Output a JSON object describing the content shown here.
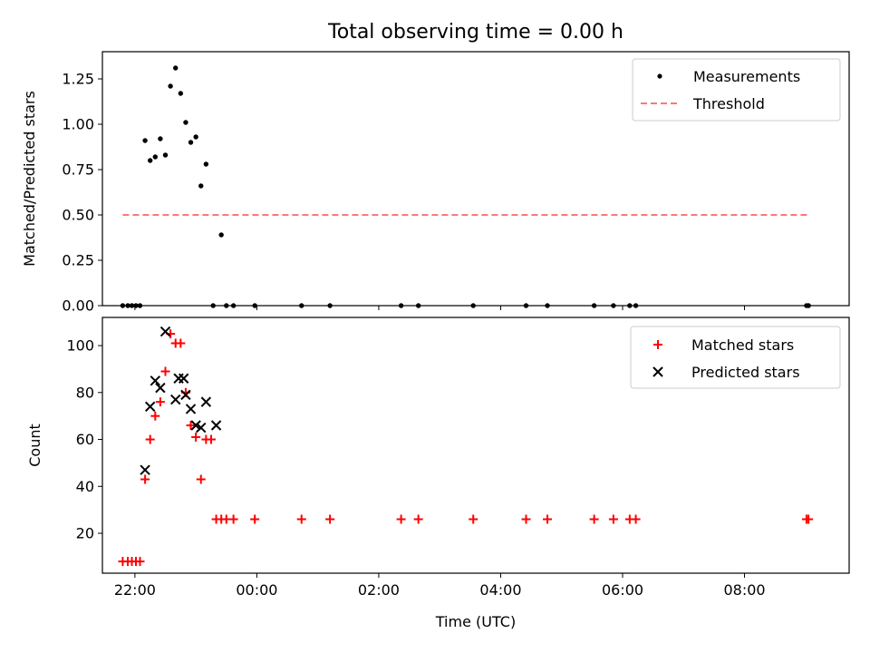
{
  "title": "Total observing time = 0.00 h",
  "colors": {
    "measurements": "#000000",
    "threshold": "#ff7777",
    "matched": "#ff0000",
    "predicted": "#000000"
  },
  "chart_data": [
    {
      "type": "scatter",
      "panel": "top",
      "title": "Total observing time = 0.00 h",
      "xlabel": "",
      "ylabel": "Matched/Predicted stars",
      "xlim": [
        "21:28",
        "09:43"
      ],
      "ylim": [
        0,
        1.4
      ],
      "yticks": [
        "0.00",
        "0.25",
        "0.50",
        "0.75",
        "1.00",
        "1.25"
      ],
      "legend_position": "top-right",
      "series": [
        {
          "name": "Measurements",
          "marker": "dot",
          "points": [
            [
              "21:48",
              0
            ],
            [
              "21:53",
              0
            ],
            [
              "21:57",
              0
            ],
            [
              "22:01",
              0
            ],
            [
              "22:05",
              0
            ],
            [
              "22:10",
              0.91
            ],
            [
              "22:15",
              0.8
            ],
            [
              "22:20",
              0.82
            ],
            [
              "22:25",
              0.92
            ],
            [
              "22:30",
              0.83
            ],
            [
              "22:35",
              1.21
            ],
            [
              "22:40",
              1.31
            ],
            [
              "22:45",
              1.17
            ],
            [
              "22:50",
              1.01
            ],
            [
              "22:55",
              0.9
            ],
            [
              "23:00",
              0.93
            ],
            [
              "23:05",
              0.66
            ],
            [
              "23:10",
              0.78
            ],
            [
              "23:17",
              0
            ],
            [
              "23:25",
              0.39
            ],
            [
              "23:30",
              0
            ],
            [
              "23:37",
              0
            ],
            [
              "23:58",
              0
            ],
            [
              "00:44",
              0
            ],
            [
              "01:12",
              0
            ],
            [
              "02:22",
              0
            ],
            [
              "02:39",
              0
            ],
            [
              "03:33",
              0
            ],
            [
              "04:25",
              0
            ],
            [
              "04:46",
              0
            ],
            [
              "05:32",
              0
            ],
            [
              "05:51",
              0
            ],
            [
              "06:07",
              0
            ],
            [
              "06:13",
              0
            ],
            [
              "09:01",
              0
            ],
            [
              "09:03",
              0
            ]
          ]
        },
        {
          "name": "Threshold",
          "style": "dashed-line",
          "points": [
            [
              "21:48",
              0.5
            ],
            [
              "09:03",
              0.5
            ]
          ]
        }
      ]
    },
    {
      "type": "scatter",
      "panel": "bottom",
      "xlabel": "Time (UTC)",
      "ylabel": "Count",
      "xlim": [
        "21:28",
        "09:43"
      ],
      "ylim": [
        3,
        112
      ],
      "yticks": [
        "20",
        "40",
        "60",
        "80",
        "100"
      ],
      "xticks": [
        "22:00",
        "00:00",
        "02:00",
        "04:00",
        "06:00",
        "08:00"
      ],
      "legend_position": "top-right",
      "series": [
        {
          "name": "Matched stars",
          "marker": "plus",
          "points": [
            [
              "21:48",
              8
            ],
            [
              "21:53",
              8
            ],
            [
              "21:57",
              8
            ],
            [
              "22:01",
              8
            ],
            [
              "22:05",
              8
            ],
            [
              "22:10",
              43
            ],
            [
              "22:15",
              60
            ],
            [
              "22:20",
              70
            ],
            [
              "22:25",
              76
            ],
            [
              "22:30",
              89
            ],
            [
              "22:35",
              105
            ],
            [
              "22:40",
              101
            ],
            [
              "22:45",
              101
            ],
            [
              "22:50",
              80
            ],
            [
              "22:55",
              66
            ],
            [
              "23:00",
              61
            ],
            [
              "23:05",
              43
            ],
            [
              "23:10",
              60
            ],
            [
              "23:15",
              60
            ],
            [
              "23:20",
              26
            ],
            [
              "23:25",
              26
            ],
            [
              "23:30",
              26
            ],
            [
              "23:37",
              26
            ],
            [
              "23:58",
              26
            ],
            [
              "00:44",
              26
            ],
            [
              "01:12",
              26
            ],
            [
              "02:22",
              26
            ],
            [
              "02:39",
              26
            ],
            [
              "03:33",
              26
            ],
            [
              "04:25",
              26
            ],
            [
              "04:46",
              26
            ],
            [
              "05:32",
              26
            ],
            [
              "05:51",
              26
            ],
            [
              "06:07",
              26
            ],
            [
              "06:13",
              26
            ],
            [
              "09:01",
              26
            ],
            [
              "09:03",
              26
            ]
          ]
        },
        {
          "name": "Predicted stars",
          "marker": "x",
          "points": [
            [
              "22:10",
              47
            ],
            [
              "22:15",
              74
            ],
            [
              "22:20",
              85
            ],
            [
              "22:25",
              82
            ],
            [
              "22:30",
              106
            ],
            [
              "22:40",
              77
            ],
            [
              "22:43",
              86
            ],
            [
              "22:48",
              86
            ],
            [
              "22:50",
              79
            ],
            [
              "22:55",
              73
            ],
            [
              "23:00",
              66
            ],
            [
              "23:05",
              65
            ],
            [
              "23:10",
              76
            ],
            [
              "23:20",
              66
            ]
          ]
        }
      ]
    }
  ]
}
